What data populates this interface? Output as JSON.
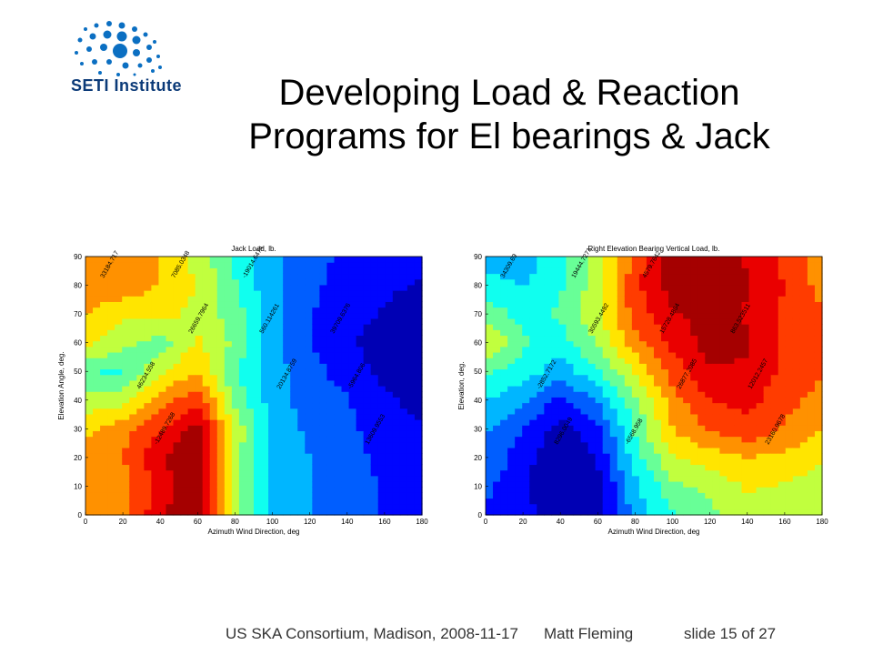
{
  "logo": {
    "text": "SETI Institute",
    "color": "#0b6fc2"
  },
  "title": {
    "line1": "Developing Load & Reaction",
    "line2": "Programs for El bearings & Jack"
  },
  "footer": {
    "event": "US SKA Consortium, Madison, 2008-11-17",
    "author": "Matt Fleming",
    "slide": "slide 15 of 27"
  },
  "chart_data": [
    {
      "type": "heatmap",
      "title": "Jack Load, lb.",
      "xlabel": "Azimuth Wind Direction, deg",
      "ylabel": "Elevation Angle, deg.",
      "xlim": [
        0,
        180
      ],
      "ylim": [
        0,
        90
      ],
      "xticks": [
        0,
        20,
        40,
        60,
        80,
        100,
        120,
        140,
        160,
        180
      ],
      "yticks": [
        0,
        10,
        20,
        30,
        40,
        50,
        60,
        70,
        80,
        90
      ],
      "x": [
        0,
        20,
        40,
        60,
        80,
        100,
        120,
        140,
        160,
        180
      ],
      "y": [
        0,
        10,
        20,
        30,
        40,
        50,
        60,
        70,
        80,
        90
      ],
      "z": [
        [
          30000,
          30000,
          40000,
          45000,
          20000,
          10000,
          6000,
          5000,
          1000,
          0
        ],
        [
          28000,
          30000,
          38000,
          45000,
          20000,
          9000,
          6000,
          5000,
          1000,
          0
        ],
        [
          29000,
          32000,
          40000,
          45000,
          21000,
          9000,
          6000,
          4000,
          0,
          -1000
        ],
        [
          27000,
          30000,
          36000,
          43000,
          22000,
          9000,
          5000,
          3000,
          -1000,
          -2000
        ],
        [
          20000,
          22000,
          30000,
          35000,
          18000,
          8000,
          4000,
          2000,
          -2000,
          -4000
        ],
        [
          15000,
          14000,
          22000,
          28000,
          15000,
          8000,
          3000,
          0,
          -4000,
          -6000
        ],
        [
          25000,
          20000,
          17000,
          24000,
          18000,
          8000,
          2000,
          -2000,
          -5000,
          -7000
        ],
        [
          28000,
          24000,
          25000,
          22000,
          17000,
          7000,
          2000,
          -1000,
          -3000,
          -5000
        ],
        [
          30000,
          31000,
          27000,
          23000,
          15000,
          7000,
          3000,
          -1000,
          -2000,
          -3000
        ],
        [
          32000,
          32000,
          28000,
          22000,
          14000,
          7000,
          4000,
          0,
          -1000,
          -2000
        ]
      ],
      "contour_labels": [
        "33184.717",
        "26659.7964",
        "20134.8759",
        "13609.9553",
        "7085.0348",
        "560.114261",
        "-5964.806",
        "-12489.7268",
        "-19014.6474",
        "39709.6376",
        "46234.558"
      ]
    },
    {
      "type": "heatmap",
      "title": "Right Elevation Bearing Vertical Load, lb.",
      "xlabel": "Azimuth Wind Direction, deg",
      "ylabel": "Elevation, deg.",
      "xlim": [
        0,
        180
      ],
      "ylim": [
        0,
        90
      ],
      "xticks": [
        0,
        20,
        40,
        60,
        80,
        100,
        120,
        140,
        160,
        180
      ],
      "yticks": [
        0,
        10,
        20,
        30,
        40,
        50,
        60,
        70,
        80,
        90
      ],
      "x": [
        0,
        20,
        40,
        60,
        80,
        100,
        120,
        140,
        160,
        180
      ],
      "y": [
        0,
        10,
        20,
        30,
        40,
        50,
        60,
        70,
        80,
        90
      ],
      "z": [
        [
          -2000,
          -4000,
          -5000,
          -6000,
          4000,
          9000,
          12000,
          15000,
          15000,
          14000
        ],
        [
          0,
          -4000,
          -7000,
          -6000,
          5000,
          12000,
          14000,
          17000,
          16000,
          15000
        ],
        [
          2000,
          -3000,
          -8000,
          -4000,
          8000,
          16000,
          18000,
          20000,
          19000,
          17000
        ],
        [
          3000,
          -1000,
          -6000,
          -2000,
          10000,
          20000,
          24000,
          26000,
          23000,
          20000
        ],
        [
          6000,
          3000,
          -2000,
          3000,
          12000,
          22000,
          27000,
          28000,
          25000,
          22000
        ],
        [
          10000,
          8000,
          4000,
          9000,
          17000,
          25000,
          30000,
          30000,
          26000,
          24000
        ],
        [
          17000,
          10000,
          8000,
          13000,
          22000,
          28000,
          32000,
          31000,
          26000,
          25000
        ],
        [
          12000,
          8000,
          10000,
          16000,
          25000,
          30000,
          32000,
          30000,
          26000,
          24000
        ],
        [
          7000,
          6000,
          9000,
          15000,
          26000,
          32000,
          34000,
          31000,
          27000,
          22000
        ],
        [
          5000,
          4000,
          8000,
          14000,
          25000,
          33000,
          34000,
          30000,
          26000,
          22000
        ]
      ],
      "contour_labels": [
        "34309.69",
        "30593.4492",
        "26877.2085",
        "23160.9678",
        "19444.7271",
        "15728.4864",
        "12012.2457",
        "8296.0049",
        "4579.7642",
        "863.523511",
        "-2852.7172",
        "-6568.958"
      ]
    }
  ]
}
